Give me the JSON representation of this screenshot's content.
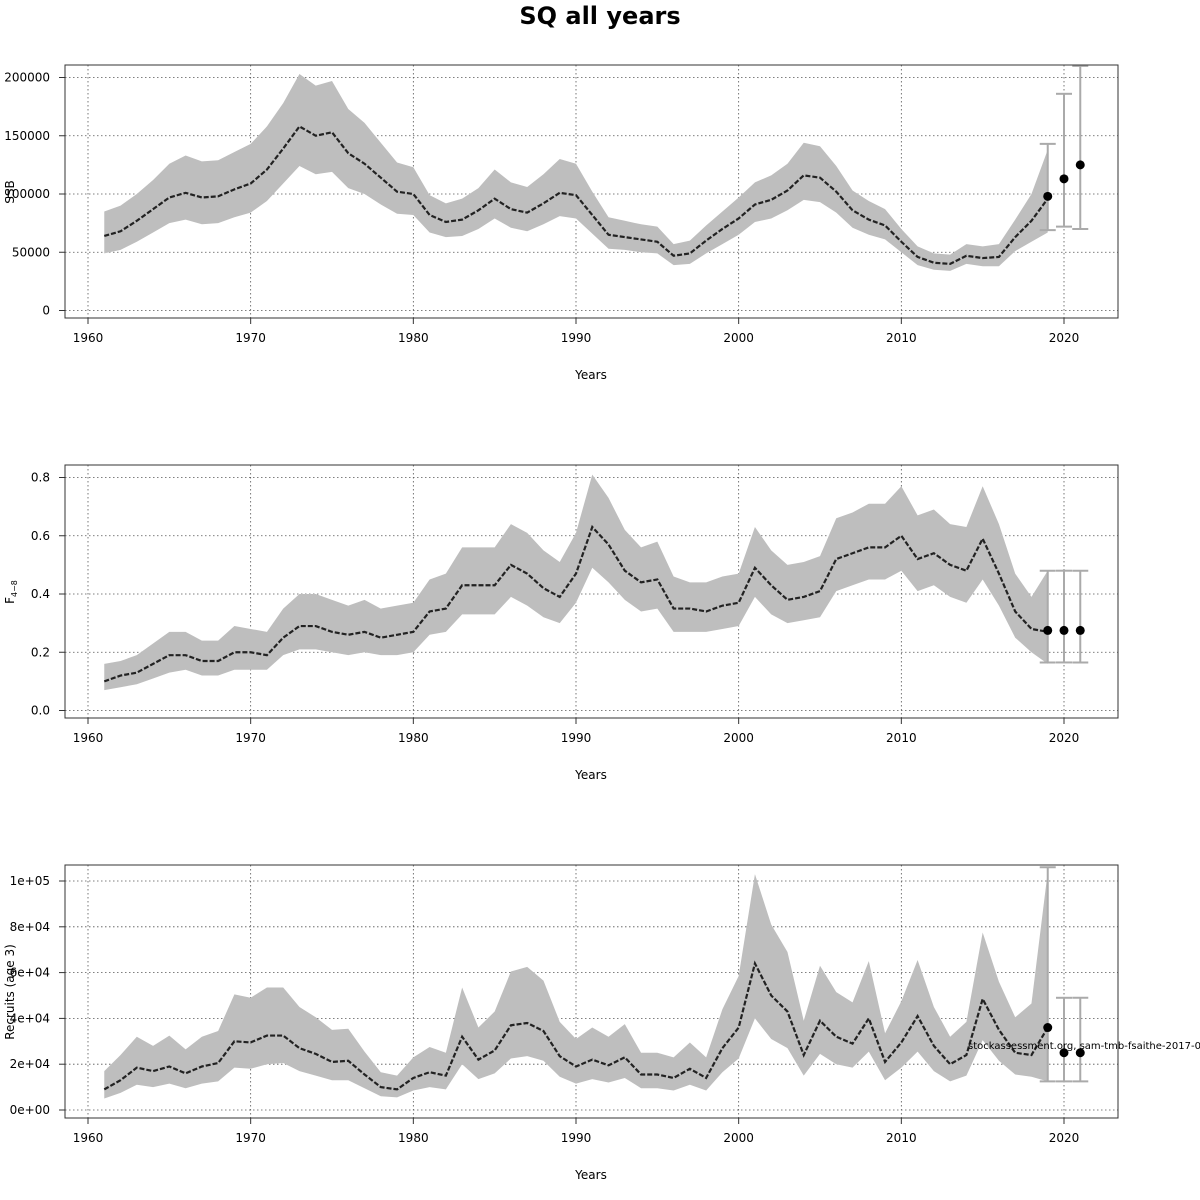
{
  "title": "SQ all years",
  "watermark": "stockassessment.org, sam-tmb-fsaithe-2017-0",
  "chart_data": [
    {
      "type": "line",
      "id": "ssb",
      "xlabel": "Years",
      "ylabel": "SSB",
      "xlim": [
        1961,
        2021
      ],
      "ylim": [
        0,
        210000
      ],
      "xticks": [
        1960,
        1970,
        1980,
        1990,
        2000,
        2010,
        2020
      ],
      "yticks": [
        0,
        50000,
        100000,
        150000,
        200000
      ],
      "ytick_labels": [
        "0",
        "50000",
        "100000",
        "150000",
        "200000"
      ],
      "grid": true,
      "years": [
        1961,
        1962,
        1963,
        1964,
        1965,
        1966,
        1967,
        1968,
        1969,
        1970,
        1971,
        1972,
        1973,
        1974,
        1975,
        1976,
        1977,
        1978,
        1979,
        1980,
        1981,
        1982,
        1983,
        1984,
        1985,
        1986,
        1987,
        1988,
        1989,
        1990,
        1991,
        1992,
        1993,
        1994,
        1995,
        1996,
        1997,
        1998,
        1999,
        2000,
        2001,
        2002,
        2003,
        2004,
        2005,
        2006,
        2007,
        2008,
        2009,
        2010,
        2011,
        2012,
        2013,
        2014,
        2015,
        2016,
        2017,
        2018,
        2019
      ],
      "estimate": [
        64000,
        68000,
        77000,
        87000,
        97000,
        101000,
        97000,
        98000,
        104000,
        109000,
        121000,
        139000,
        158000,
        150000,
        153000,
        135000,
        126000,
        114000,
        102000,
        100000,
        82000,
        76000,
        78000,
        86000,
        96000,
        87000,
        84000,
        92000,
        101000,
        99000,
        82000,
        65000,
        63000,
        61000,
        59000,
        47000,
        49000,
        60000,
        70000,
        79000,
        91000,
        95000,
        103000,
        116000,
        114000,
        102000,
        86000,
        78000,
        73000,
        59000,
        46000,
        41000,
        40000,
        47000,
        45000,
        46000,
        63000,
        77000,
        96000
      ],
      "lower": [
        49000,
        52000,
        59000,
        67000,
        75000,
        78000,
        74000,
        75000,
        80000,
        84000,
        94000,
        109000,
        124000,
        117000,
        119000,
        105000,
        100000,
        91000,
        83000,
        82000,
        67000,
        63000,
        64000,
        70000,
        79000,
        71000,
        68000,
        74000,
        81000,
        79000,
        66000,
        53000,
        52000,
        50000,
        49000,
        39000,
        40000,
        49000,
        57000,
        65000,
        76000,
        79000,
        86000,
        95000,
        93000,
        84000,
        71000,
        65000,
        61000,
        50000,
        39000,
        35000,
        34000,
        40000,
        38000,
        38000,
        51000,
        59000,
        67000
      ],
      "upper": [
        85000,
        90000,
        100000,
        112000,
        126000,
        133000,
        128000,
        129000,
        136000,
        143000,
        158000,
        178000,
        203000,
        193000,
        197000,
        173000,
        161000,
        144000,
        127000,
        123000,
        99000,
        92000,
        96000,
        105000,
        121000,
        110000,
        106000,
        117000,
        130000,
        126000,
        102000,
        80000,
        77000,
        74000,
        72000,
        57000,
        60000,
        73000,
        85000,
        97000,
        110000,
        116000,
        126000,
        144000,
        141000,
        124000,
        103000,
        94000,
        87000,
        70000,
        55000,
        49000,
        48000,
        57000,
        55000,
        57000,
        78000,
        100000,
        138000
      ],
      "forecast": [
        {
          "year": 2019,
          "median": 98000,
          "low": 69000,
          "high": 143000
        },
        {
          "year": 2020,
          "median": 113000,
          "low": 72000,
          "high": 186000
        },
        {
          "year": 2021,
          "median": 125000,
          "low": 70000,
          "high": 210000
        }
      ]
    },
    {
      "type": "line",
      "id": "fbar",
      "xlabel": "Years",
      "ylabel": "F",
      "ylabel_sub": "4−8",
      "xlim": [
        1961,
        2021
      ],
      "ylim": [
        0,
        0.8
      ],
      "xticks": [
        1960,
        1970,
        1980,
        1990,
        2000,
        2010,
        2020
      ],
      "yticks": [
        0,
        0.2,
        0.4,
        0.6,
        0.8
      ],
      "ytick_labels": [
        "0.0",
        "0.2",
        "0.4",
        "0.6",
        "0.8"
      ],
      "grid": true,
      "years": [
        1961,
        1962,
        1963,
        1964,
        1965,
        1966,
        1967,
        1968,
        1969,
        1970,
        1971,
        1972,
        1973,
        1974,
        1975,
        1976,
        1977,
        1978,
        1979,
        1980,
        1981,
        1982,
        1983,
        1984,
        1985,
        1986,
        1987,
        1988,
        1989,
        1990,
        1991,
        1992,
        1993,
        1994,
        1995,
        1996,
        1997,
        1998,
        1999,
        2000,
        2001,
        2002,
        2003,
        2004,
        2005,
        2006,
        2007,
        2008,
        2009,
        2010,
        2011,
        2012,
        2013,
        2014,
        2015,
        2016,
        2017,
        2018,
        2019
      ],
      "estimate": [
        0.1,
        0.12,
        0.13,
        0.16,
        0.19,
        0.19,
        0.17,
        0.17,
        0.2,
        0.2,
        0.19,
        0.25,
        0.29,
        0.29,
        0.27,
        0.26,
        0.27,
        0.25,
        0.26,
        0.27,
        0.34,
        0.35,
        0.43,
        0.43,
        0.43,
        0.5,
        0.47,
        0.42,
        0.39,
        0.47,
        0.63,
        0.57,
        0.48,
        0.44,
        0.45,
        0.35,
        0.35,
        0.34,
        0.36,
        0.37,
        0.49,
        0.43,
        0.38,
        0.39,
        0.41,
        0.52,
        0.54,
        0.56,
        0.56,
        0.6,
        0.52,
        0.54,
        0.5,
        0.48,
        0.59,
        0.47,
        0.34,
        0.28,
        0.27
      ],
      "lower": [
        0.07,
        0.08,
        0.09,
        0.11,
        0.13,
        0.14,
        0.12,
        0.12,
        0.14,
        0.14,
        0.14,
        0.19,
        0.21,
        0.21,
        0.2,
        0.19,
        0.2,
        0.19,
        0.19,
        0.2,
        0.26,
        0.27,
        0.33,
        0.33,
        0.33,
        0.39,
        0.36,
        0.32,
        0.3,
        0.37,
        0.49,
        0.44,
        0.38,
        0.34,
        0.35,
        0.27,
        0.27,
        0.27,
        0.28,
        0.29,
        0.39,
        0.33,
        0.3,
        0.31,
        0.32,
        0.41,
        0.43,
        0.45,
        0.45,
        0.48,
        0.41,
        0.43,
        0.39,
        0.37,
        0.45,
        0.36,
        0.25,
        0.2,
        0.16
      ],
      "upper": [
        0.16,
        0.17,
        0.19,
        0.23,
        0.27,
        0.27,
        0.24,
        0.24,
        0.29,
        0.28,
        0.27,
        0.35,
        0.4,
        0.4,
        0.38,
        0.36,
        0.38,
        0.35,
        0.36,
        0.37,
        0.45,
        0.47,
        0.56,
        0.56,
        0.56,
        0.64,
        0.61,
        0.55,
        0.51,
        0.61,
        0.81,
        0.73,
        0.62,
        0.56,
        0.58,
        0.46,
        0.44,
        0.44,
        0.46,
        0.47,
        0.63,
        0.55,
        0.5,
        0.51,
        0.53,
        0.66,
        0.68,
        0.71,
        0.71,
        0.77,
        0.67,
        0.69,
        0.64,
        0.63,
        0.77,
        0.64,
        0.47,
        0.39,
        0.48
      ],
      "forecast": [
        {
          "year": 2019,
          "median": 0.275,
          "low": 0.165,
          "high": 0.48
        },
        {
          "year": 2020,
          "median": 0.275,
          "low": 0.165,
          "high": 0.48
        },
        {
          "year": 2021,
          "median": 0.275,
          "low": 0.165,
          "high": 0.48
        }
      ]
    },
    {
      "type": "line",
      "id": "recruits",
      "xlabel": "Years",
      "ylabel": "Recruits (age 3)",
      "xlim": [
        1961,
        2021
      ],
      "ylim": [
        0,
        105000
      ],
      "xticks": [
        1960,
        1970,
        1980,
        1990,
        2000,
        2010,
        2020
      ],
      "yticks": [
        0,
        20000,
        40000,
        60000,
        80000,
        100000
      ],
      "ytick_labels": [
        "0e+00",
        "2e+04",
        "4e+04",
        "6e+04",
        "8e+04",
        "1e+05"
      ],
      "grid": true,
      "years": [
        1961,
        1962,
        1963,
        1964,
        1965,
        1966,
        1967,
        1968,
        1969,
        1970,
        1971,
        1972,
        1973,
        1974,
        1975,
        1976,
        1977,
        1978,
        1979,
        1980,
        1981,
        1982,
        1983,
        1984,
        1985,
        1986,
        1987,
        1988,
        1989,
        1990,
        1991,
        1992,
        1993,
        1994,
        1995,
        1996,
        1997,
        1998,
        1999,
        2000,
        2001,
        2002,
        2003,
        2004,
        2005,
        2006,
        2007,
        2008,
        2009,
        2010,
        2011,
        2012,
        2013,
        2014,
        2015,
        2016,
        2017,
        2018,
        2019
      ],
      "estimate": [
        9000,
        13000,
        18500,
        17000,
        19000,
        16000,
        19000,
        20500,
        30000,
        29500,
        32500,
        32500,
        27000,
        24500,
        21000,
        21500,
        15500,
        10000,
        9000,
        14000,
        16500,
        15000,
        32000,
        22000,
        26000,
        37000,
        38000,
        34500,
        23500,
        19000,
        22000,
        19500,
        23000,
        15500,
        15500,
        14000,
        18000,
        14000,
        27000,
        36000,
        64000,
        50000,
        43000,
        24000,
        39000,
        32000,
        29000,
        40000,
        21000,
        29500,
        41000,
        28000,
        20000,
        24000,
        48500,
        35000,
        25000,
        24000,
        36000
      ],
      "lower": [
        5000,
        7500,
        11000,
        10000,
        11500,
        9500,
        11500,
        12500,
        18500,
        18000,
        20000,
        20500,
        17000,
        15000,
        13000,
        13000,
        9500,
        6000,
        5500,
        8500,
        10000,
        9000,
        20000,
        13500,
        16000,
        22500,
        23500,
        21500,
        14500,
        11500,
        13500,
        12000,
        14000,
        9500,
        9500,
        8500,
        11000,
        8500,
        16500,
        22500,
        40000,
        31000,
        27000,
        15000,
        24500,
        20000,
        18500,
        25500,
        13000,
        18500,
        25500,
        17000,
        12500,
        15000,
        30500,
        21500,
        15500,
        14500,
        12500
      ],
      "upper": [
        17000,
        24000,
        32000,
        28000,
        32500,
        26500,
        32000,
        34500,
        50500,
        49000,
        53500,
        53500,
        45000,
        40500,
        35000,
        35500,
        25500,
        16500,
        15000,
        23000,
        27500,
        25000,
        53500,
        36000,
        43000,
        60500,
        62500,
        56500,
        38500,
        31000,
        36000,
        32000,
        37500,
        25000,
        25000,
        23000,
        29500,
        23000,
        44000,
        58500,
        103000,
        81000,
        69000,
        39000,
        63000,
        51500,
        47000,
        65000,
        33500,
        47500,
        65500,
        45000,
        32000,
        38500,
        77500,
        56000,
        40500,
        46500,
        104000
      ],
      "forecast": [
        {
          "year": 2019,
          "median": 36000,
          "low": 12500,
          "high": 106000
        },
        {
          "year": 2020,
          "median": 25000,
          "low": 12500,
          "high": 49000
        },
        {
          "year": 2021,
          "median": 25000,
          "low": 12500,
          "high": 49000
        }
      ]
    }
  ]
}
